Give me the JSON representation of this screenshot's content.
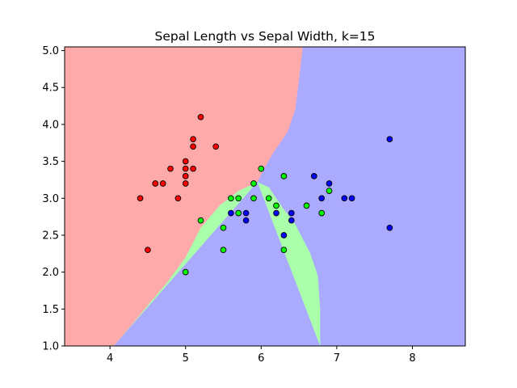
{
  "chart_data": {
    "type": "scatter",
    "title": "Sepal Length vs Sepal Width, k=15",
    "xlabel": "",
    "ylabel": "",
    "xlim": [
      3.4,
      8.7
    ],
    "ylim": [
      1.0,
      5.05
    ],
    "x_ticks": [
      "4",
      "5",
      "6",
      "7",
      "8"
    ],
    "y_ticks": [
      "1.0",
      "1.5",
      "2.0",
      "2.5",
      "3.0",
      "3.5",
      "4.0",
      "4.5",
      "5.0"
    ],
    "grid": false,
    "colors": {
      "region_red": "#ffaaaa",
      "region_green": "#aaffaa",
      "region_blue": "#aaaaff",
      "point_red": "#ff0000",
      "point_green": "#00ff00",
      "point_blue": "#0000ff",
      "edge": "#000000"
    },
    "regions": {
      "red_green_boundary": [
        [
          4.05,
          1.0
        ],
        [
          4.3,
          1.3
        ],
        [
          4.5,
          1.55
        ],
        [
          4.75,
          1.85
        ],
        [
          5.0,
          2.2
        ],
        [
          5.2,
          2.6
        ],
        [
          5.45,
          2.9
        ],
        [
          5.7,
          3.1
        ],
        [
          5.95,
          3.22
        ]
      ],
      "green_blue_boundary": [
        [
          5.95,
          3.22
        ],
        [
          6.1,
          3.15
        ],
        [
          6.2,
          3.0
        ],
        [
          6.3,
          2.85
        ],
        [
          6.45,
          2.65
        ],
        [
          6.55,
          2.45
        ],
        [
          6.65,
          2.25
        ],
        [
          6.75,
          1.95
        ],
        [
          6.78,
          1.5
        ],
        [
          6.78,
          1.0
        ]
      ],
      "red_blue_boundary": [
        [
          5.95,
          3.22
        ],
        [
          6.05,
          3.42
        ],
        [
          6.15,
          3.6
        ],
        [
          6.35,
          3.9
        ],
        [
          6.45,
          4.2
        ],
        [
          6.5,
          4.6
        ],
        [
          6.55,
          5.05
        ]
      ]
    },
    "series": [
      {
        "class": "red",
        "points": [
          [
            4.4,
            3.0
          ],
          [
            4.5,
            2.3
          ],
          [
            4.6,
            3.2
          ],
          [
            4.7,
            3.2
          ],
          [
            4.8,
            3.4
          ],
          [
            4.9,
            3.0
          ],
          [
            5.0,
            3.5
          ],
          [
            5.0,
            3.4
          ],
          [
            5.0,
            3.3
          ],
          [
            5.0,
            3.2
          ],
          [
            5.1,
            3.8
          ],
          [
            5.1,
            3.7
          ],
          [
            5.1,
            3.4
          ],
          [
            5.2,
            4.1
          ],
          [
            5.4,
            3.7
          ]
        ]
      },
      {
        "class": "green",
        "points": [
          [
            5.0,
            2.0
          ],
          [
            5.2,
            2.7
          ],
          [
            5.5,
            2.6
          ],
          [
            5.5,
            2.3
          ],
          [
            5.6,
            3.0
          ],
          [
            5.7,
            3.0
          ],
          [
            5.7,
            2.8
          ],
          [
            5.9,
            3.2
          ],
          [
            5.9,
            3.0
          ],
          [
            6.0,
            3.4
          ],
          [
            6.1,
            3.0
          ],
          [
            6.2,
            2.9
          ],
          [
            6.3,
            3.3
          ],
          [
            6.3,
            2.3
          ],
          [
            6.6,
            2.9
          ],
          [
            6.8,
            2.8
          ],
          [
            6.9,
            3.1
          ]
        ]
      },
      {
        "class": "blue",
        "points": [
          [
            5.6,
            2.8
          ],
          [
            5.8,
            2.8
          ],
          [
            5.8,
            2.7
          ],
          [
            6.2,
            2.8
          ],
          [
            6.3,
            2.5
          ],
          [
            6.4,
            2.8
          ],
          [
            6.4,
            2.7
          ],
          [
            6.7,
            3.3
          ],
          [
            6.8,
            3.0
          ],
          [
            6.9,
            3.2
          ],
          [
            7.1,
            3.0
          ],
          [
            7.2,
            3.0
          ],
          [
            7.7,
            3.8
          ],
          [
            7.7,
            2.6
          ]
        ]
      }
    ]
  }
}
